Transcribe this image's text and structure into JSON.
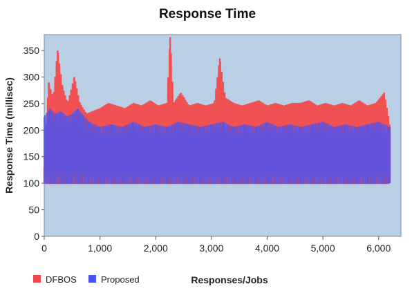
{
  "chart_data": {
    "type": "line",
    "title": "Response Time",
    "xlabel": "Responses/Jobs",
    "ylabel": "Response Time (millisec)",
    "xlim": [
      0,
      6400
    ],
    "ylim": [
      0,
      380
    ],
    "x_ticks": [
      "0",
      "1,000",
      "2,000",
      "3,000",
      "4,000",
      "5,000",
      "6,000"
    ],
    "x_tick_values": [
      0,
      1000,
      2000,
      3000,
      4000,
      5000,
      6000
    ],
    "y_ticks": [
      "0",
      "50",
      "100",
      "150",
      "200",
      "250",
      "300",
      "350"
    ],
    "y_tick_values": [
      0,
      50,
      100,
      150,
      200,
      250,
      300,
      350
    ],
    "grid": false,
    "legend_position": "bottom-left",
    "series": [
      {
        "name": "DFBOS",
        "color": "#f24a4a",
        "x": [
          0,
          80,
          160,
          240,
          330,
          420,
          540,
          640,
          760,
          880,
          1000,
          1150,
          1300,
          1450,
          1600,
          1750,
          1900,
          2050,
          2200,
          2260,
          2320,
          2450,
          2600,
          2750,
          2900,
          3050,
          3150,
          3250,
          3400,
          3550,
          3700,
          3850,
          4000,
          4150,
          4300,
          4450,
          4600,
          4750,
          4900,
          5050,
          5200,
          5350,
          5500,
          5650,
          5800,
          5950,
          6100,
          6200
        ],
        "values": [
          130,
          290,
          260,
          350,
          280,
          250,
          300,
          250,
          230,
          235,
          240,
          250,
          245,
          240,
          250,
          245,
          255,
          245,
          250,
          375,
          250,
          270,
          245,
          250,
          245,
          250,
          335,
          260,
          250,
          245,
          250,
          255,
          245,
          250,
          245,
          250,
          250,
          255,
          245,
          250,
          245,
          250,
          245,
          255,
          245,
          250,
          270,
          210
        ],
        "floor": 100
      },
      {
        "name": "Proposed",
        "color": "#4a52f2",
        "x": [
          0,
          100,
          200,
          300,
          400,
          500,
          600,
          800,
          1000,
          1200,
          1400,
          1600,
          1800,
          2000,
          2200,
          2400,
          2600,
          2800,
          3000,
          3200,
          3400,
          3600,
          3800,
          4000,
          4200,
          4400,
          4600,
          4800,
          5000,
          5200,
          5400,
          5600,
          5800,
          6000,
          6200
        ],
        "values": [
          225,
          240,
          230,
          235,
          225,
          230,
          240,
          215,
          205,
          210,
          205,
          215,
          205,
          210,
          205,
          215,
          210,
          205,
          210,
          215,
          205,
          210,
          205,
          215,
          205,
          210,
          205,
          210,
          215,
          205,
          210,
          205,
          210,
          215,
          205
        ],
        "floor": 100
      }
    ]
  }
}
